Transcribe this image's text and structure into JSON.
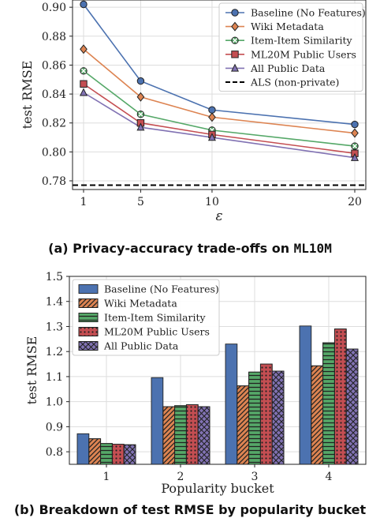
{
  "captions": {
    "a_prefix": "(a) Privacy-accuracy trade-offs on ",
    "a_code": "ML10M",
    "b": "(b) Breakdown of test RMSE by popularity bucket"
  },
  "colors": {
    "baseline": "#4C72B0",
    "wiki": "#DD8452",
    "item_item": "#55A868",
    "ml20m": "#C44E52",
    "all_public": "#8172B3",
    "als": "#000000",
    "grid": "#dddddd"
  },
  "chart_data": [
    {
      "type": "line",
      "xlabel": "ε",
      "ylabel": "test RMSE",
      "x": [
        1,
        5,
        10,
        20
      ],
      "x_ticks": [
        "1",
        "5",
        "10",
        "20"
      ],
      "ylim": [
        0.774,
        0.905
      ],
      "y_ticks": [
        0.78,
        0.8,
        0.82,
        0.84,
        0.86,
        0.88,
        0.9
      ],
      "y_tick_labels": [
        "0.78",
        "0.80",
        "0.82",
        "0.84",
        "0.86",
        "0.88",
        "0.90"
      ],
      "grid": true,
      "legend_position": "top-right",
      "series": [
        {
          "name": "Baseline (No Features)",
          "color_key": "baseline",
          "marker": "circle",
          "values": [
            0.902,
            0.849,
            0.829,
            0.819
          ]
        },
        {
          "name": "Wiki Metadata",
          "color_key": "wiki",
          "marker": "diamond",
          "values": [
            0.871,
            0.838,
            0.824,
            0.813
          ]
        },
        {
          "name": "Item-Item Similarity",
          "color_key": "item_item",
          "marker": "x",
          "values": [
            0.856,
            0.826,
            0.815,
            0.804
          ]
        },
        {
          "name": "ML20M Public Users",
          "color_key": "ml20m",
          "marker": "square",
          "values": [
            0.847,
            0.82,
            0.812,
            0.799
          ]
        },
        {
          "name": "All Public Data",
          "color_key": "all_public",
          "marker": "triangle",
          "values": [
            0.841,
            0.817,
            0.81,
            0.796
          ]
        }
      ],
      "reference_lines": [
        {
          "name": "ALS (non-private)",
          "color_key": "als",
          "style": "dashed",
          "value": 0.777
        }
      ]
    },
    {
      "type": "bar",
      "xlabel": "Popularity bucket",
      "ylabel": "test RMSE",
      "categories": [
        "1",
        "2",
        "3",
        "4"
      ],
      "ylim": [
        0.75,
        1.5
      ],
      "y_ticks": [
        0.8,
        0.9,
        1.0,
        1.1,
        1.2,
        1.3,
        1.4,
        1.5
      ],
      "y_tick_labels": [
        "0.8",
        "0.9",
        "1.0",
        "1.1",
        "1.2",
        "1.3",
        "1.4",
        "1.5"
      ],
      "grid": true,
      "legend_position": "top-left",
      "series": [
        {
          "name": "Baseline (No Features)",
          "color_key": "baseline",
          "hatch": "none",
          "values": [
            0.872,
            1.096,
            1.23,
            1.302
          ]
        },
        {
          "name": "Wiki Metadata",
          "color_key": "wiki",
          "hatch": "diagonal",
          "values": [
            0.852,
            0.98,
            1.063,
            1.143
          ]
        },
        {
          "name": "Item-Item Similarity",
          "color_key": "item_item",
          "hatch": "horizontal",
          "values": [
            0.833,
            0.984,
            1.118,
            1.235
          ]
        },
        {
          "name": "ML20M Public Users",
          "color_key": "ml20m",
          "hatch": "dots",
          "values": [
            0.83,
            0.988,
            1.15,
            1.29
          ]
        },
        {
          "name": "All Public Data",
          "color_key": "all_public",
          "hatch": "cross",
          "values": [
            0.828,
            0.98,
            1.122,
            1.21
          ]
        }
      ]
    }
  ]
}
